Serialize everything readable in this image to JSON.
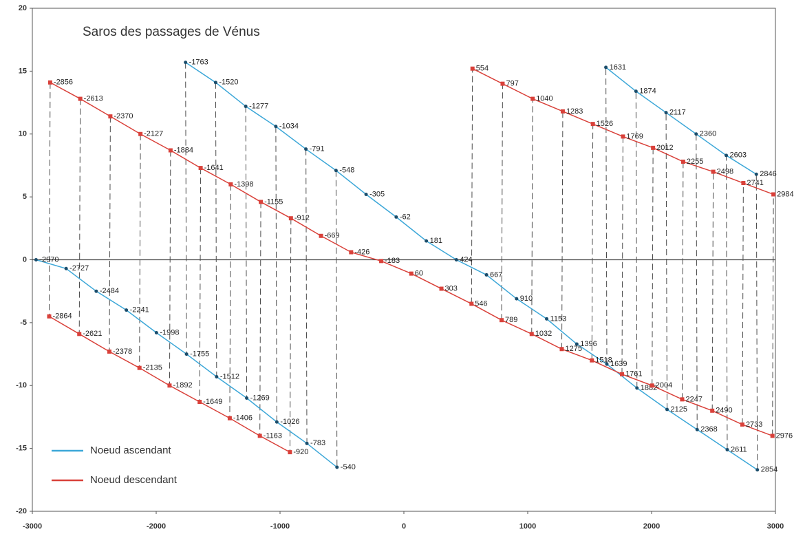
{
  "chart_data": {
    "type": "line",
    "title": "Saros des passages de Vénus",
    "xlim": [
      -3000,
      3000
    ],
    "xticks": [
      -3000,
      -2000,
      -1000,
      0,
      1000,
      2000,
      3000
    ],
    "ylim": [
      -20,
      20
    ],
    "yticks": [
      -20,
      -15,
      -10,
      -5,
      0,
      5,
      10,
      15,
      20
    ],
    "legend": "lower left",
    "series": [
      {
        "name": "Noeud ascendant",
        "color": "#3ca7d8",
        "lines": [
          {
            "x": [
              -1763,
              -1520,
              -1277,
              -1034,
              -791,
              -548,
              -305,
              -62,
              181,
              424,
              667,
              910,
              1153,
              1396,
              1639,
              1882,
              2125,
              2368,
              2611,
              2854
            ],
            "values": [
              15.7,
              14.1,
              12.2,
              10.6,
              8.8,
              7.1,
              5.2,
              3.4,
              1.5,
              0.0,
              -1.2,
              -3.1,
              -4.7,
              -6.7,
              -8.3,
              -10.2,
              -11.9,
              -13.5,
              -15.1,
              -16.7
            ]
          },
          {
            "x": [
              -2970,
              -2727,
              -2484,
              -2241,
              -1998,
              -1755,
              -1512,
              -1269,
              -1026,
              -783,
              -540
            ],
            "values": [
              0.0,
              -0.7,
              -2.5,
              -4.0,
              -5.8,
              -7.5,
              -9.3,
              -11.0,
              -12.9,
              -14.6,
              -16.5
            ]
          },
          {
            "x": [
              1631,
              1874,
              2117,
              2360,
              2603,
              2846
            ],
            "values": [
              15.3,
              13.4,
              11.7,
              10.0,
              8.3,
              6.8
            ]
          }
        ]
      },
      {
        "name": "Noeud descendant",
        "color": "#d9413a",
        "lines": [
          {
            "x": [
              -2856,
              -2613,
              -2370,
              -2127,
              -1884,
              -1641,
              -1398,
              -1155,
              -912,
              -669,
              -426,
              -183,
              60,
              303,
              546,
              789,
              1032,
              1275,
              1518,
              1761,
              2004,
              2247,
              2490,
              2733,
              2976
            ],
            "values": [
              14.1,
              12.8,
              11.4,
              10.0,
              8.7,
              7.3,
              6.0,
              4.6,
              3.3,
              1.9,
              0.6,
              -0.1,
              -1.1,
              -2.3,
              -3.5,
              -4.8,
              -5.9,
              -7.1,
              -8.0,
              -9.1,
              -10.0,
              -11.1,
              -12.0,
              -13.1,
              -14.0
            ]
          },
          {
            "x": [
              -2864,
              -2621,
              -2378,
              -2135,
              -1892,
              -1649,
              -1406,
              -1163,
              -920
            ],
            "values": [
              -4.5,
              -5.9,
              -7.3,
              -8.6,
              -10.0,
              -11.3,
              -12.6,
              -14.0,
              -15.3
            ]
          },
          {
            "x": [
              554,
              797,
              1040,
              1283,
              1526,
              1769,
              2012,
              2255,
              2498,
              2741,
              2984
            ],
            "values": [
              15.2,
              14.0,
              12.8,
              11.8,
              10.8,
              9.8,
              8.9,
              7.8,
              7.0,
              6.1,
              5.2
            ]
          }
        ]
      }
    ]
  }
}
